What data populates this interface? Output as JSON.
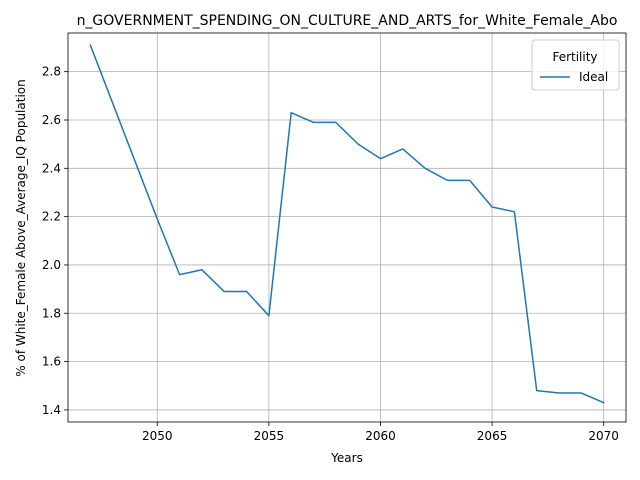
{
  "chart_data": {
    "type": "line",
    "title": "n_GOVERNMENT_SPENDING_ON_CULTURE_AND_ARTS_for_White_Female_Abo",
    "xlabel": "Years",
    "ylabel": "% of White_Female Above_Average_IQ Population",
    "xlim": [
      2046,
      2071
    ],
    "ylim": [
      1.35,
      2.96
    ],
    "x_ticks": [
      2050,
      2055,
      2060,
      2065,
      2070
    ],
    "y_ticks": [
      1.4,
      1.6,
      1.8,
      2.0,
      2.2,
      2.4,
      2.6,
      2.8
    ],
    "grid": true,
    "legend": {
      "title": "Fertility",
      "placement": "top-right"
    },
    "x": [
      2047,
      2048,
      2049,
      2050,
      2051,
      2052,
      2053,
      2054,
      2055,
      2056,
      2057,
      2058,
      2059,
      2060,
      2061,
      2062,
      2063,
      2064,
      2065,
      2066,
      2067,
      2068,
      2069,
      2070
    ],
    "series": [
      {
        "name": "Ideal",
        "color": "#1f77b4",
        "values": [
          2.91,
          2.67,
          2.43,
          2.19,
          1.96,
          1.98,
          1.89,
          1.89,
          1.79,
          2.63,
          2.59,
          2.59,
          2.5,
          2.44,
          2.48,
          2.4,
          2.35,
          2.35,
          2.24,
          2.22,
          1.48,
          1.47,
          1.47,
          1.43
        ]
      }
    ]
  }
}
